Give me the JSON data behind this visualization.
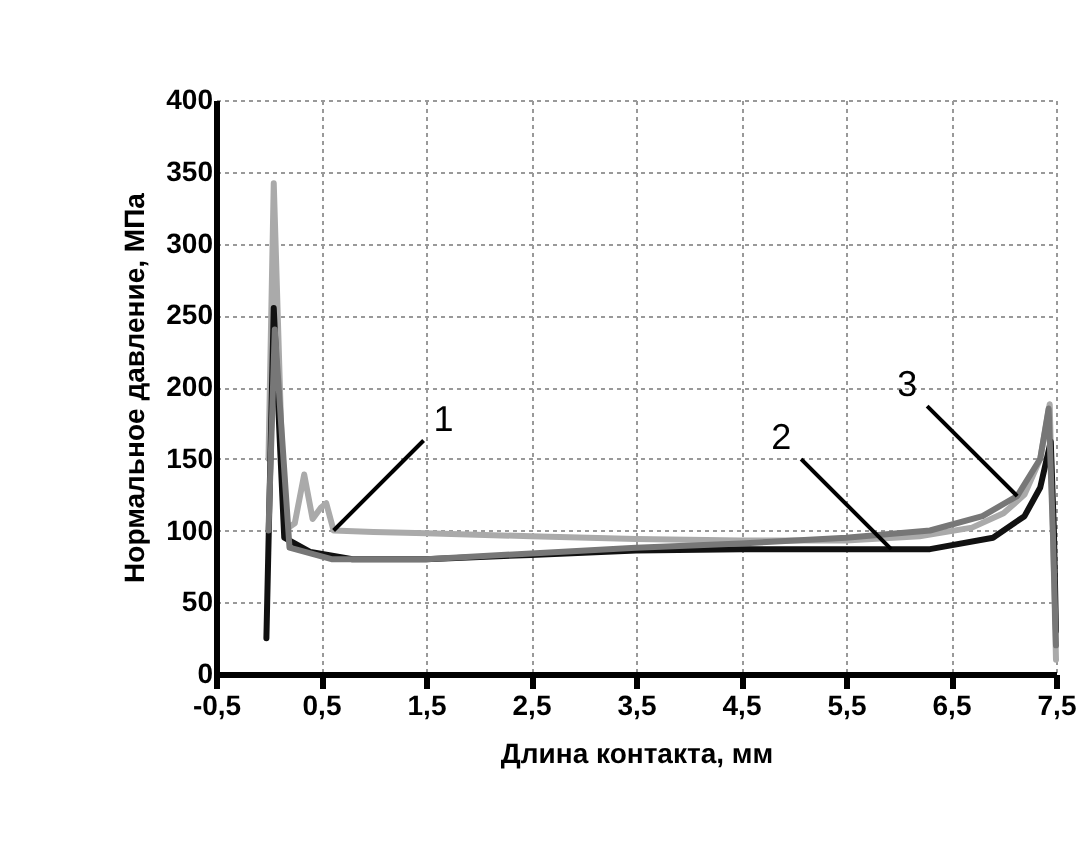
{
  "chart_data": {
    "type": "line",
    "xlabel": "Длина контакта, мм",
    "ylabel": "Нормальное давление, МПа",
    "xlim": [
      -0.5,
      7.5
    ],
    "xticks": [
      {
        "value": -0.5,
        "label": "-0,5"
      },
      {
        "value": 0.5,
        "label": "0,5"
      },
      {
        "value": 1.5,
        "label": "1,5"
      },
      {
        "value": 2.5,
        "label": "2,5"
      },
      {
        "value": 3.5,
        "label": "3,5"
      },
      {
        "value": 4.5,
        "label": "4,5"
      },
      {
        "value": 5.5,
        "label": "5,5"
      },
      {
        "value": 6.5,
        "label": "6,5"
      },
      {
        "value": 7.5,
        "label": "7,5"
      }
    ],
    "ylim": [
      0,
      400
    ],
    "yticks": [
      0,
      50,
      100,
      150,
      200,
      250,
      300,
      350,
      400
    ],
    "grid": true,
    "marker": "none",
    "line_style": "solid",
    "series": [
      {
        "color": "#aaaaaa",
        "x": [
          0.0,
          0.05,
          0.15,
          0.25,
          0.34,
          0.42,
          0.5,
          0.55,
          0.62,
          1.0,
          1.5,
          2.5,
          3.5,
          4.5,
          5.5,
          6.2,
          6.7,
          7.0,
          7.2,
          7.35,
          7.44,
          7.47,
          7.5
        ],
        "values": [
          150,
          342,
          100,
          105,
          139,
          108,
          116,
          119,
          100,
          99,
          98,
          96,
          94,
          93,
          93,
          96,
          102,
          112,
          125,
          150,
          188,
          100,
          10
        ]
      },
      {
        "color": "#111111",
        "x": [
          -0.02,
          0.05,
          0.15,
          0.4,
          0.8,
          1.5,
          2.5,
          3.5,
          4.5,
          5.5,
          6.3,
          6.9,
          7.2,
          7.35,
          7.45,
          7.48,
          7.5
        ],
        "values": [
          25,
          255,
          95,
          85,
          80,
          80,
          83,
          86,
          87,
          87,
          87,
          95,
          110,
          130,
          162,
          100,
          30
        ]
      },
      {
        "color": "#777777",
        "x": [
          0.0,
          0.06,
          0.2,
          0.6,
          1.5,
          2.5,
          3.5,
          4.5,
          5.5,
          6.3,
          6.8,
          7.13,
          7.35,
          7.43,
          7.47,
          7.5
        ],
        "values": [
          100,
          240,
          88,
          80,
          80,
          84,
          88,
          91,
          95,
          100,
          110,
          124,
          150,
          185,
          100,
          20
        ]
      }
    ],
    "annotations": [
      {
        "text": "1",
        "x": 0.62,
        "y": 100
      },
      {
        "text": "2",
        "x": 5.93,
        "y": 87
      },
      {
        "text": "3",
        "x": 7.13,
        "y": 124
      }
    ]
  }
}
